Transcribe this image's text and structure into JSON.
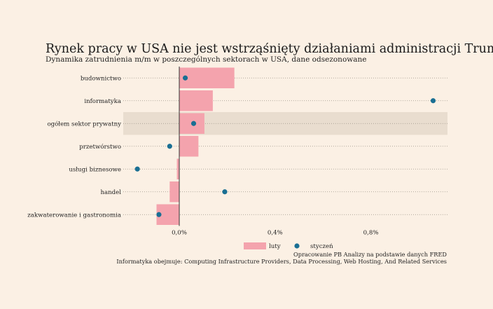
{
  "chart_data": {
    "type": "bar",
    "orientation": "horizontal",
    "title": "Rynek pracy w USA nie jest wstrząśnięty działaniami administracji Trumpa",
    "subtitle": "Dynamika zatrudnienia m/m w poszczególnych sektorach w USA, dane odsezonowane",
    "categories": [
      "budownictwo",
      "informatyka",
      "ogółem sektor prywatny",
      "przetwórstwo",
      "usługi biznesowe",
      "handel",
      "zakwaterowanie i gastronomia"
    ],
    "highlighted_category": "ogółem sektor prywatny",
    "series": [
      {
        "name": "luty",
        "mark": "bar",
        "color": "#f4a3ad",
        "values": [
          0.23,
          0.14,
          0.105,
          0.08,
          -0.01,
          -0.04,
          -0.095
        ]
      },
      {
        "name": "styczeń",
        "mark": "point",
        "color": "#1a6f93",
        "values": [
          0.025,
          1.06,
          0.06,
          -0.04,
          -0.175,
          0.19,
          -0.085
        ]
      }
    ],
    "xlim": [
      -0.235,
      1.12
    ],
    "xticks": [
      0.0,
      0.4,
      0.8
    ],
    "xtick_labels": [
      "0,0%",
      "0,4%",
      "0,8%"
    ],
    "legend_position": "bottom-center",
    "grid": "dotted horizontal per category",
    "notes": [
      "Opracowanie PB Analizy na podstawie danych FRED",
      "Informatyka obejmuje: Computing Infrastructure Providers, Data Processing, Web Hosting, And Related Services"
    ]
  }
}
